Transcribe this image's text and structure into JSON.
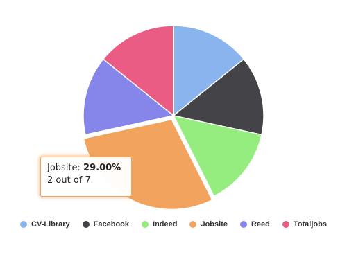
{
  "chart_data": {
    "type": "pie",
    "categories": [
      "CV-Library",
      "Facebook",
      "Indeed",
      "Jobsite",
      "Reed",
      "Totaljobs"
    ],
    "values": [
      14.2,
      14.2,
      14.2,
      29.0,
      14.2,
      14.2
    ],
    "colors": [
      "#8ab4ee",
      "#434348",
      "#95ed7f",
      "#f2a45e",
      "#8685e9",
      "#eb5c84"
    ],
    "legend_placement": "bottom",
    "tooltip": {
      "category": "Jobsite",
      "label": "Jobsite: ",
      "value": "29.00%",
      "detail": "2 out of 7"
    }
  }
}
